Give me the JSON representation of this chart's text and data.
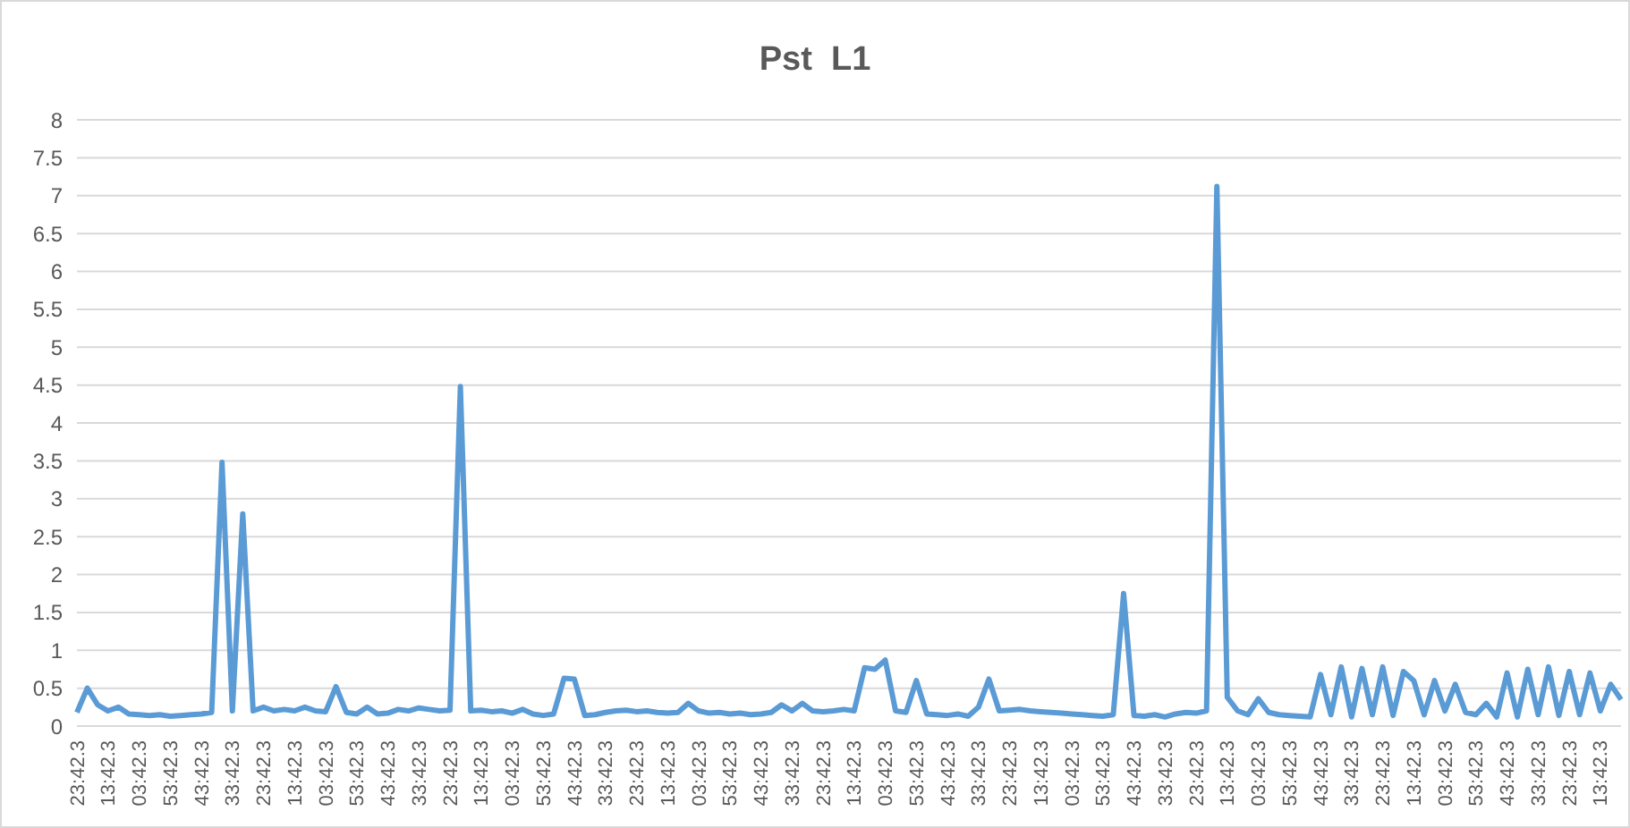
{
  "chart_data": {
    "type": "line",
    "title": "Pst  L1",
    "categories": [
      "23:42.3",
      null,
      null,
      "13:42.3",
      null,
      null,
      "03:42.3",
      null,
      null,
      "53:42.3",
      null,
      null,
      "43:42.3",
      null,
      null,
      "33:42.3",
      null,
      null,
      "23:42.3",
      null,
      null,
      "13:42.3",
      null,
      null,
      "03:42.3",
      null,
      null,
      "53:42.3",
      null,
      null,
      "43:42.3",
      null,
      null,
      "33:42.3",
      null,
      null,
      "23:42.3",
      null,
      null,
      "13:42.3",
      null,
      null,
      "03:42.3",
      null,
      null,
      "53:42.3",
      null,
      null,
      "43:42.3",
      null,
      null,
      "33:42.3",
      null,
      null,
      "23:42.3",
      null,
      null,
      "13:42.3",
      null,
      null,
      "03:42.3",
      null,
      null,
      "53:42.3",
      null,
      null,
      "43:42.3",
      null,
      null,
      "33:42.3",
      null,
      null,
      "23:42.3",
      null,
      null,
      "13:42.3",
      null,
      null,
      "03:42.3",
      null,
      null,
      "53:42.3",
      null,
      null,
      "43:42.3",
      null,
      null,
      "33:42.3",
      null,
      null,
      "23:42.3",
      null,
      null,
      "13:42.3",
      null,
      null,
      "03:42.3",
      null,
      null,
      "53:42.3",
      null,
      null,
      "43:42.3",
      null,
      null,
      "33:42.3",
      null,
      null,
      "23:42.3",
      null,
      null,
      "13:42.3",
      null,
      null,
      "03:42.3",
      null,
      null,
      "53:42.3",
      null,
      null,
      "43:42.3",
      null,
      null,
      "33:42.3",
      null,
      null,
      "23:42.3",
      null,
      null,
      "13:42.3",
      null,
      null,
      "03:42.3",
      null,
      null,
      "53:42.3",
      null,
      null,
      "43:42.3",
      null,
      null,
      "33:42.3",
      null,
      null,
      "23:42.3",
      null,
      null,
      "13:42.3",
      null,
      null
    ],
    "series": [
      {
        "color": "#5b9bd5",
        "values": [
          0.18,
          0.5,
          0.28,
          0.2,
          0.25,
          0.16,
          0.15,
          0.14,
          0.15,
          0.13,
          0.14,
          0.15,
          0.16,
          0.18,
          3.48,
          0.2,
          2.8,
          0.2,
          0.25,
          0.2,
          0.22,
          0.2,
          0.25,
          0.2,
          0.19,
          0.52,
          0.18,
          0.16,
          0.25,
          0.16,
          0.17,
          0.22,
          0.2,
          0.24,
          0.22,
          0.2,
          0.21,
          4.48,
          0.2,
          0.21,
          0.19,
          0.2,
          0.17,
          0.22,
          0.16,
          0.14,
          0.16,
          0.63,
          0.62,
          0.14,
          0.15,
          0.18,
          0.2,
          0.21,
          0.19,
          0.2,
          0.18,
          0.17,
          0.18,
          0.3,
          0.2,
          0.17,
          0.18,
          0.16,
          0.17,
          0.15,
          0.16,
          0.18,
          0.28,
          0.2,
          0.3,
          0.2,
          0.19,
          0.2,
          0.22,
          0.2,
          0.77,
          0.75,
          0.87,
          0.2,
          0.18,
          0.6,
          0.16,
          0.15,
          0.14,
          0.16,
          0.13,
          0.25,
          0.62,
          0.2,
          0.21,
          0.22,
          0.2,
          0.19,
          0.18,
          0.17,
          0.16,
          0.15,
          0.14,
          0.13,
          0.15,
          1.75,
          0.14,
          0.13,
          0.15,
          0.12,
          0.16,
          0.18,
          0.17,
          0.2,
          7.12,
          0.38,
          0.2,
          0.15,
          0.36,
          0.18,
          0.15,
          0.14,
          0.13,
          0.12,
          0.68,
          0.15,
          0.78,
          0.12,
          0.76,
          0.15,
          0.78,
          0.14,
          0.72,
          0.6,
          0.15,
          0.6,
          0.2,
          0.55,
          0.18,
          0.15,
          0.3,
          0.12,
          0.7,
          0.12,
          0.75,
          0.15,
          0.78,
          0.14,
          0.72,
          0.15,
          0.7,
          0.2,
          0.55,
          0.35
        ]
      }
    ],
    "ylim": [
      0,
      8
    ],
    "yticks": [
      0,
      0.5,
      1,
      1.5,
      2,
      2.5,
      3,
      3.5,
      4,
      4.5,
      5,
      5.5,
      6,
      6.5,
      7,
      7.5,
      8
    ],
    "grid": "y",
    "legend": false,
    "marker": "none",
    "line_style": "solid"
  }
}
